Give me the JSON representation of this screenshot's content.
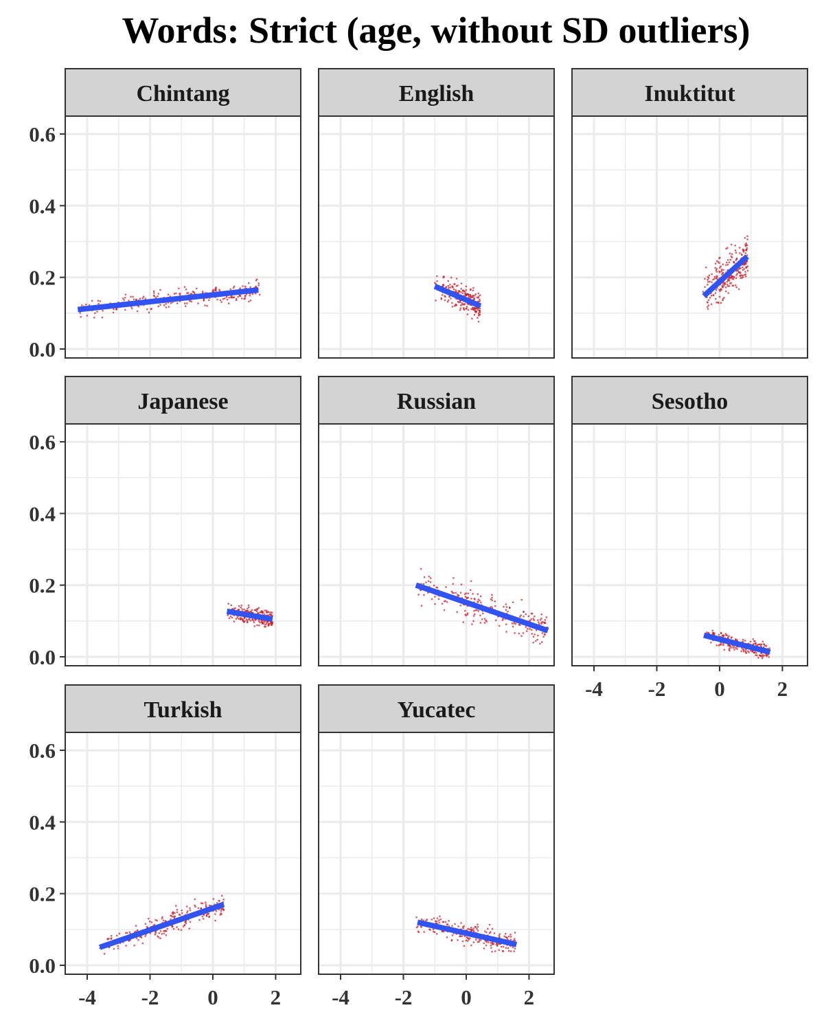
{
  "title": "Words: Strict (age, without SD outliers)",
  "colors": {
    "points": "#c41a26",
    "fit_line": "#3053f2",
    "strip_fill": "#d3d3d3",
    "grid": "#ebebeb",
    "border": "#333333"
  },
  "chart_data": {
    "type": "scatter",
    "facet_by": "language",
    "xlim": [
      -4.7,
      2.8
    ],
    "ylim": [
      -0.025,
      0.65
    ],
    "x_ticks": [
      -4,
      -2,
      0,
      2
    ],
    "y_ticks": [
      0.0,
      0.2,
      0.4,
      0.6
    ],
    "x_tick_labels": [
      "-4",
      "-2",
      "0",
      "2"
    ],
    "y_tick_labels": [
      "0.0",
      "0.2",
      "0.4",
      "0.6"
    ],
    "grid": true,
    "panels": [
      {
        "name": "Chintang",
        "x_range": [
          -4.3,
          1.5
        ],
        "fit": [
          [
            -4.3,
            0.11
          ],
          [
            1.45,
            0.165
          ]
        ],
        "spread": 0.013
      },
      {
        "name": "English",
        "x_range": [
          -1.0,
          0.45
        ],
        "fit": [
          [
            -1.0,
            0.175
          ],
          [
            0.45,
            0.12
          ]
        ],
        "spread": 0.018
      },
      {
        "name": "Inuktitut",
        "x_range": [
          -0.55,
          0.9
        ],
        "fit": [
          [
            -0.5,
            0.148
          ],
          [
            0.88,
            0.258
          ]
        ],
        "spread": 0.03
      },
      {
        "name": "Japanese",
        "x_range": [
          0.45,
          1.9
        ],
        "fit": [
          [
            0.45,
            0.127
          ],
          [
            1.9,
            0.105
          ]
        ],
        "spread": 0.012
      },
      {
        "name": "Russian",
        "x_range": [
          -1.6,
          2.6
        ],
        "fit": [
          [
            -1.6,
            0.2
          ],
          [
            2.6,
            0.073
          ]
        ],
        "spread": 0.022
      },
      {
        "name": "Sesotho",
        "x_range": [
          -0.5,
          1.6
        ],
        "fit": [
          [
            -0.5,
            0.06
          ],
          [
            1.6,
            0.013
          ]
        ],
        "spread": 0.01
      },
      {
        "name": "Turkish",
        "x_range": [
          -3.6,
          0.35
        ],
        "fit": [
          [
            -3.6,
            0.05
          ],
          [
            0.35,
            0.17
          ]
        ],
        "spread": 0.015
      },
      {
        "name": "Yucatec",
        "x_range": [
          -1.6,
          1.6
        ],
        "fit": [
          [
            -1.55,
            0.12
          ],
          [
            1.6,
            0.058
          ]
        ],
        "spread": 0.014
      }
    ]
  }
}
